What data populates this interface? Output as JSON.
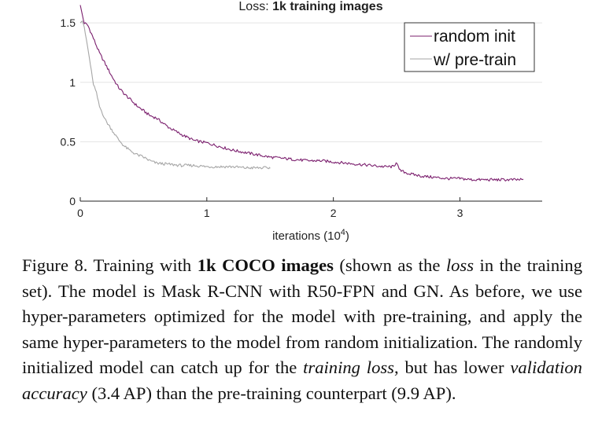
{
  "chart_data": {
    "type": "line",
    "title_prefix": "Loss: ",
    "title_bold": "1k training images",
    "xlabel_main": "iterations (10",
    "xlabel_sup": "4",
    "xlabel_close": ")",
    "xlim": [
      0,
      3.65
    ],
    "ylim": [
      0,
      1.6
    ],
    "xticks": [
      0,
      1,
      2,
      3
    ],
    "xtick_labels": [
      "0",
      "1",
      "2",
      "3"
    ],
    "yticks": [
      0,
      0.5,
      1,
      1.5
    ],
    "ytick_labels": [
      "0",
      "0.5",
      "1",
      "1.5"
    ],
    "grid": true,
    "legend_position": "top-right",
    "series": [
      {
        "name": "random init",
        "color": "#7b1f6e",
        "x": [
          0,
          0.03,
          0.06,
          0.1,
          0.15,
          0.2,
          0.25,
          0.3,
          0.35,
          0.4,
          0.45,
          0.5,
          0.55,
          0.6,
          0.65,
          0.7,
          0.8,
          0.9,
          1.0,
          1.1,
          1.2,
          1.3,
          1.4,
          1.5,
          1.6,
          1.7,
          1.8,
          1.9,
          2.0,
          2.1,
          2.2,
          2.3,
          2.4,
          2.48,
          2.5,
          2.52,
          2.6,
          2.7,
          2.8,
          2.9,
          3.0,
          3.1,
          3.2,
          3.3,
          3.4,
          3.5
        ],
        "y": [
          1.65,
          1.5,
          1.48,
          1.38,
          1.25,
          1.15,
          1.05,
          0.96,
          0.9,
          0.85,
          0.8,
          0.76,
          0.72,
          0.7,
          0.66,
          0.62,
          0.56,
          0.51,
          0.49,
          0.46,
          0.43,
          0.41,
          0.39,
          0.37,
          0.36,
          0.35,
          0.34,
          0.34,
          0.33,
          0.32,
          0.31,
          0.3,
          0.29,
          0.29,
          0.34,
          0.26,
          0.23,
          0.21,
          0.2,
          0.19,
          0.19,
          0.18,
          0.18,
          0.18,
          0.18,
          0.18
        ]
      },
      {
        "name": "w/ pre-train",
        "color": "#a6a6a6",
        "x": [
          0,
          0.02,
          0.05,
          0.08,
          0.1,
          0.13,
          0.15,
          0.18,
          0.2,
          0.25,
          0.3,
          0.35,
          0.4,
          0.45,
          0.5,
          0.55,
          0.6,
          0.7,
          0.8,
          0.9,
          1.0,
          1.1,
          1.2,
          1.3,
          1.4,
          1.5
        ],
        "y": [
          1.5,
          1.52,
          1.35,
          1.15,
          1.0,
          0.9,
          0.8,
          0.73,
          0.68,
          0.6,
          0.52,
          0.46,
          0.42,
          0.39,
          0.37,
          0.34,
          0.32,
          0.31,
          0.3,
          0.3,
          0.29,
          0.29,
          0.29,
          0.28,
          0.28,
          0.28
        ]
      }
    ]
  },
  "caption": {
    "intro": "Figure 8. Training with ",
    "bold": "1k COCO images",
    "part2": " (shown as the ",
    "italic1": "loss",
    "part3": " in the training set).  The model is Mask R-CNN with R50-FPN and GN.  As before, we use hyper-parameters optimized for the model with pre-training, and apply the same hyper-parameters to the model from random initialization.  The randomly initialized model can catch up for the ",
    "italic2": "training loss",
    "part4": ", but has lower ",
    "italic3": "validation accuracy",
    "part5": " (3.4 AP) than the pre-training counterpart (9.9 AP)."
  }
}
